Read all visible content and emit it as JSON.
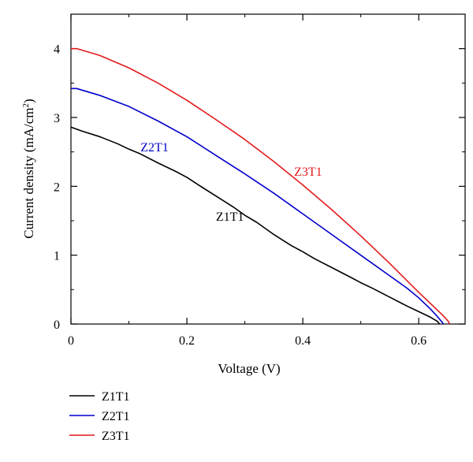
{
  "chart_data": {
    "type": "line",
    "xlabel": "Voltage (V)",
    "ylabel_main": "Current density (mA/cm",
    "ylabel_sup": "2",
    "ylabel_close": ")",
    "xlim": [
      0,
      0.68
    ],
    "ylim": [
      0,
      4.5
    ],
    "xticks": [
      0,
      0.2,
      0.4,
      0.6
    ],
    "xtick_labels": [
      "0",
      "0.2",
      "0.4",
      "0.6"
    ],
    "yticks": [
      0,
      1,
      2,
      3,
      4
    ],
    "ytick_labels": [
      "0",
      "1",
      "2",
      "3",
      "4"
    ],
    "grid": false,
    "legend_position": "bottom-left, below plot",
    "series": [
      {
        "name": "Z1T1",
        "color": "#000000",
        "x": [
          0,
          0.02,
          0.05,
          0.08,
          0.1,
          0.12,
          0.15,
          0.18,
          0.2,
          0.22,
          0.25,
          0.28,
          0.3,
          0.32,
          0.35,
          0.38,
          0.4,
          0.42,
          0.45,
          0.48,
          0.5,
          0.52,
          0.55,
          0.58,
          0.6,
          0.62,
          0.632,
          0.64,
          0.645
        ],
        "y": [
          2.86,
          2.8,
          2.72,
          2.62,
          2.54,
          2.47,
          2.34,
          2.22,
          2.13,
          2.02,
          1.86,
          1.7,
          1.58,
          1.48,
          1.3,
          1.14,
          1.05,
          0.95,
          0.82,
          0.69,
          0.6,
          0.52,
          0.39,
          0.26,
          0.18,
          0.1,
          0.04,
          -0.04,
          -0.07
        ]
      },
      {
        "name": "Z2T1",
        "color": "#0000cc",
        "x": [
          0,
          0.01,
          0.05,
          0.1,
          0.15,
          0.2,
          0.25,
          0.3,
          0.35,
          0.4,
          0.45,
          0.5,
          0.55,
          0.58,
          0.6,
          0.62,
          0.63,
          0.64,
          0.645,
          0.65
        ],
        "y": [
          3.42,
          3.42,
          3.32,
          3.16,
          2.95,
          2.72,
          2.45,
          2.18,
          1.9,
          1.6,
          1.3,
          1.0,
          0.7,
          0.52,
          0.38,
          0.22,
          0.13,
          0.03,
          -0.03,
          -0.07
        ]
      },
      {
        "name": "Z3T1",
        "color": "#e31a1c",
        "x": [
          0,
          0.01,
          0.05,
          0.1,
          0.15,
          0.2,
          0.25,
          0.3,
          0.35,
          0.4,
          0.45,
          0.5,
          0.55,
          0.6,
          0.62,
          0.64,
          0.65,
          0.655,
          0.66,
          0.665
        ],
        "y": [
          4.0,
          4.0,
          3.9,
          3.72,
          3.5,
          3.25,
          2.97,
          2.68,
          2.36,
          2.02,
          1.66,
          1.28,
          0.88,
          0.46,
          0.3,
          0.14,
          0.05,
          -0.02,
          -0.06,
          -0.09
        ]
      }
    ],
    "annotations": [
      {
        "text": "Z1T1",
        "x": 0.25,
        "y": 1.5,
        "color": "#000000"
      },
      {
        "text": "Z2T1",
        "x": 0.12,
        "y": 2.51,
        "color": "#0000cc"
      },
      {
        "text": "Z3T1",
        "x": 0.385,
        "y": 2.15,
        "color": "#e31a1c"
      }
    ]
  }
}
